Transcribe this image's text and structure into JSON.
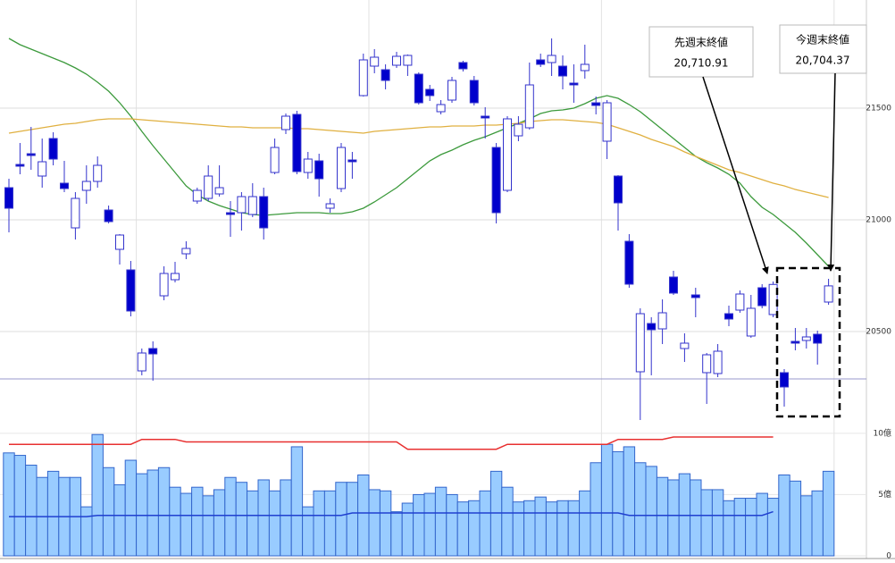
{
  "chart_data": {
    "type": "candlestick",
    "ohlc": {
      "open": [
        21144,
        21248,
        21296,
        21196,
        21364,
        21164,
        20964,
        21132,
        21172,
        21044,
        20868,
        20776,
        20324,
        20424,
        20660,
        20732,
        20848,
        21084,
        21096,
        21116,
        21032,
        21032,
        21024,
        21104,
        21212,
        21404,
        21472,
        21212,
        21264,
        21052,
        21140,
        21268,
        21556,
        21688,
        21672,
        21692,
        21692,
        21652,
        21584,
        21484,
        21536,
        21704,
        21624,
        21464,
        21324,
        21132,
        21376,
        21412,
        21716,
        21704,
        21688,
        21612,
        21668,
        21524,
        21352,
        21196,
        20904,
        20320,
        20536,
        20512,
        20744,
        20424,
        20664,
        20316,
        20312,
        20580,
        20596,
        20480,
        20696,
        20576,
        20316,
        20456,
        20460,
        20488,
        20632
      ],
      "high": [
        21184,
        21344,
        21416,
        21364,
        21392,
        21264,
        21124,
        21244,
        21284,
        21064,
        20936,
        20816,
        20424,
        20456,
        20792,
        20812,
        20904,
        21144,
        21244,
        21244,
        21084,
        21124,
        21164,
        21144,
        21364,
        21476,
        21488,
        21304,
        21296,
        21096,
        21344,
        21304,
        21744,
        21764,
        21696,
        21752,
        21740,
        21660,
        21604,
        21536,
        21640,
        21712,
        21644,
        21504,
        21344,
        21464,
        21464,
        21704,
        21744,
        21812,
        21736,
        21696,
        21784,
        21552,
        21536,
        21200,
        20936,
        20604,
        20564,
        20644,
        20772,
        20492,
        20696,
        20404,
        20444,
        20616,
        20684,
        20664,
        20712,
        20724,
        20332,
        20516,
        20516,
        20504,
        20736
      ],
      "low": [
        20944,
        21204,
        21224,
        21144,
        21244,
        21124,
        20912,
        21072,
        21144,
        20984,
        20800,
        20568,
        20304,
        20280,
        20640,
        20720,
        20824,
        21072,
        21084,
        21104,
        20924,
        20952,
        21012,
        20912,
        21204,
        21384,
        21204,
        21184,
        21104,
        21032,
        21124,
        21184,
        21552,
        21656,
        21584,
        21680,
        21644,
        21516,
        21532,
        21472,
        21524,
        21664,
        21512,
        21364,
        20984,
        21124,
        21352,
        21404,
        21684,
        21644,
        21584,
        21524,
        21632,
        21472,
        21272,
        20952,
        20696,
        20104,
        20304,
        20444,
        20664,
        20364,
        20564,
        20176,
        20296,
        20524,
        20584,
        20472,
        20604,
        20564,
        20164,
        20416,
        20424,
        20352,
        20620
      ],
      "close": [
        21052,
        21240,
        21288,
        21260,
        21272,
        21140,
        21096,
        21172,
        21244,
        20992,
        20932,
        20592,
        20404,
        20400,
        20760,
        20760,
        20872,
        21132,
        21196,
        21144,
        21024,
        21104,
        21104,
        20964,
        21324,
        21464,
        21216,
        21272,
        21184,
        21072,
        21324,
        21260,
        21716,
        21728,
        21624,
        21732,
        21736,
        21524,
        21556,
        21516,
        21624,
        21676,
        21524,
        21456,
        21032,
        21452,
        21428,
        21604,
        21696,
        21736,
        21644,
        21604,
        21696,
        21512,
        21524,
        21076,
        20712,
        20580,
        20508,
        20584,
        20672,
        20448,
        20652,
        20396,
        20412,
        20556,
        20668,
        20604,
        20616,
        20710.91,
        20252,
        20448,
        20476,
        20448,
        20704.37
      ]
    },
    "up_color": "#ffffff",
    "down_color": "#0000cc",
    "edge_color": "#3333cc",
    "ylim": [
      20084,
      21984
    ],
    "yticks": [
      20500,
      21000,
      21500
    ],
    "grid": true,
    "moving_averages": [
      {
        "color": "#3c9a3c",
        "values": [
          21812,
          21784,
          21764,
          21744,
          21724,
          21704,
          21680,
          21652,
          21616,
          21576,
          21524,
          21464,
          21396,
          21332,
          21272,
          21212,
          21152,
          21112,
          21084,
          21064,
          21048,
          21032,
          21024,
          21020,
          21024,
          21028,
          21032,
          21032,
          21032,
          21028,
          21028,
          21036,
          21052,
          21080,
          21112,
          21144,
          21184,
          21224,
          21264,
          21292,
          21312,
          21336,
          21356,
          21372,
          21392,
          21412,
          21432,
          21452,
          21476,
          21488,
          21492,
          21500,
          21520,
          21544,
          21556,
          21544,
          21516,
          21484,
          21444,
          21404,
          21364,
          21324,
          21284,
          21256,
          21232,
          21204,
          21164,
          21104,
          21056,
          21024,
          20984,
          20944,
          20896,
          20844,
          20792
        ]
      },
      {
        "color": "#e0b040",
        "values": [
          21388,
          21396,
          21404,
          21412,
          21420,
          21428,
          21432,
          21440,
          21448,
          21452,
          21452,
          21452,
          21448,
          21444,
          21440,
          21436,
          21432,
          21428,
          21424,
          21420,
          21416,
          21416,
          21412,
          21412,
          21412,
          21412,
          21408,
          21408,
          21404,
          21400,
          21396,
          21392,
          21388,
          21396,
          21400,
          21404,
          21408,
          21412,
          21416,
          21416,
          21420,
          21420,
          21420,
          21424,
          21424,
          21428,
          21432,
          21440,
          21444,
          21448,
          21448,
          21444,
          21440,
          21436,
          21428,
          21412,
          21396,
          21380,
          21360,
          21344,
          21328,
          21304,
          21284,
          21264,
          21244,
          21224,
          21212,
          21196,
          21180,
          21164,
          21152,
          21136,
          21124,
          21112,
          21100
        ]
      }
    ],
    "reference_line": {
      "value": 20288,
      "color": "#9999cc"
    },
    "volume": {
      "values": [
        8.4,
        8.2,
        7.4,
        6.4,
        6.9,
        6.4,
        6.4,
        4.0,
        9.9,
        7.2,
        5.8,
        7.8,
        6.7,
        7.0,
        7.2,
        5.6,
        5.1,
        5.6,
        4.9,
        5.4,
        6.4,
        6.0,
        5.3,
        6.2,
        5.3,
        6.2,
        8.9,
        4.0,
        5.3,
        5.3,
        6.0,
        6.0,
        6.6,
        5.4,
        5.3,
        3.6,
        4.3,
        5.0,
        5.1,
        5.6,
        5.0,
        4.4,
        4.5,
        5.3,
        6.9,
        5.6,
        4.4,
        4.5,
        4.8,
        4.4,
        4.5,
        4.5,
        5.3,
        7.6,
        9.1,
        8.5,
        8.9,
        7.6,
        7.3,
        6.4,
        6.2,
        6.7,
        6.2,
        5.4,
        5.4,
        4.5,
        4.7,
        4.7,
        5.1,
        4.7,
        6.6,
        6.1,
        4.9,
        5.3,
        6.9
      ],
      "color": "#99ccff",
      "edge_color": "#3366cc",
      "ylim": [
        0,
        10.5
      ],
      "yticks": [
        0,
        {
          "value": 5,
          "label": "5億"
        },
        {
          "value": 10,
          "label": "10億"
        }
      ],
      "lines": [
        {
          "color": "#e83030",
          "values": [
            9.1,
            9.1,
            9.1,
            9.1,
            9.1,
            9.1,
            9.1,
            9.1,
            9.1,
            9.1,
            9.1,
            9.1,
            9.5,
            9.5,
            9.5,
            9.5,
            9.3,
            9.3,
            9.3,
            9.3,
            9.3,
            9.3,
            9.3,
            9.3,
            9.3,
            9.3,
            9.3,
            9.3,
            9.3,
            9.3,
            9.3,
            9.3,
            9.3,
            9.3,
            9.3,
            9.3,
            8.7,
            8.7,
            8.7,
            8.7,
            8.7,
            8.7,
            8.7,
            8.7,
            8.7,
            9.1,
            9.1,
            9.1,
            9.1,
            9.1,
            9.1,
            9.1,
            9.1,
            9.1,
            9.1,
            9.5,
            9.5,
            9.5,
            9.5,
            9.5,
            9.7,
            9.7,
            9.7,
            9.7,
            9.7,
            9.7,
            9.7,
            9.7,
            9.7,
            9.7,
            null,
            null,
            null,
            null,
            null
          ]
        },
        {
          "color": "#2040d0",
          "values": [
            3.2,
            3.2,
            3.2,
            3.2,
            3.2,
            3.2,
            3.2,
            3.2,
            3.3,
            3.3,
            3.3,
            3.3,
            3.3,
            3.3,
            3.3,
            3.3,
            3.3,
            3.3,
            3.3,
            3.3,
            3.3,
            3.3,
            3.3,
            3.3,
            3.3,
            3.3,
            3.3,
            3.3,
            3.3,
            3.3,
            3.3,
            3.5,
            3.5,
            3.5,
            3.5,
            3.5,
            3.5,
            3.5,
            3.5,
            3.5,
            3.5,
            3.5,
            3.5,
            3.5,
            3.5,
            3.5,
            3.5,
            3.5,
            3.5,
            3.5,
            3.5,
            3.5,
            3.5,
            3.5,
            3.5,
            3.5,
            3.3,
            3.3,
            3.3,
            3.3,
            3.3,
            3.3,
            3.3,
            3.3,
            3.3,
            3.3,
            3.3,
            3.3,
            3.3,
            3.6,
            null,
            null,
            null,
            null,
            null
          ]
        }
      ]
    },
    "annotations": [
      {
        "title": "先週末終値",
        "value_label": "20,710.91"
      },
      {
        "title": "今週末終値",
        "value_label": "20,704.37"
      }
    ]
  }
}
